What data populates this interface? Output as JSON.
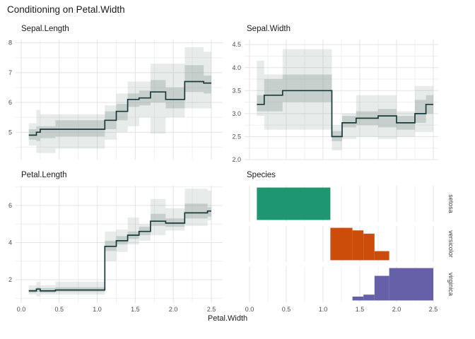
{
  "figure_title": "Conditioning on Petal.Width",
  "theme": {
    "background": "#ffffff",
    "grid_major": "#e3e3e3",
    "grid_minor": "#efefef",
    "line_color": "#18393a",
    "ribbon_color": "#93a39e",
    "ribbon_outer_opacity": 0.22,
    "ribbon_inner_opacity": 0.38,
    "tick_text_color": "#4d4d4d",
    "strip_text_color": "#404040"
  },
  "chart_data": [
    {
      "id": "sepal-length",
      "type": "area",
      "title": "Sepal.Length",
      "xlabel": "Petal.Width",
      "xlim": [
        -0.074,
        2.649
      ],
      "ylim": [
        4.08,
        8.11
      ],
      "xticks": {
        "values": [
          0,
          0.5,
          1,
          1.5,
          2,
          2.5
        ],
        "labels": [
          "0.0",
          "0.5",
          "1.0",
          "1.5",
          "2.0",
          "2.5"
        ]
      },
      "yticks": {
        "values": [
          5,
          6,
          7,
          8
        ],
        "labels": [
          "5",
          "6",
          "7",
          "8"
        ]
      },
      "show_x_labels": false,
      "grid": {
        "x_major": [
          0,
          0.5,
          1,
          1.5,
          2,
          2.5
        ],
        "x_minor": [
          0.25,
          0.75,
          1.25,
          1.75,
          2.25
        ],
        "y_major": [
          5,
          6,
          7,
          8
        ],
        "y_minor": [
          4.5,
          5.5,
          6.5,
          7.5
        ]
      },
      "steps": [
        {
          "x": 0.1,
          "y": 4.9,
          "inner": [
            4.75,
            5.1
          ],
          "outer": [
            4.55,
            5.3
          ]
        },
        {
          "x": 0.2,
          "y": 5.0,
          "inner": [
            4.7,
            5.2
          ],
          "outer": [
            4.3,
            5.75
          ]
        },
        {
          "x": 0.25,
          "y": 5.1,
          "inner": [
            4.8,
            5.2
          ],
          "outer": [
            4.3,
            5.6
          ]
        },
        {
          "x": 0.45,
          "y": 5.1,
          "inner": [
            4.85,
            5.4
          ],
          "outer": [
            4.45,
            5.6
          ]
        },
        {
          "x": 1.1,
          "y": 5.4,
          "inner": [
            5.1,
            5.7
          ],
          "outer": [
            4.75,
            5.9
          ]
        },
        {
          "x": 1.25,
          "y": 5.7,
          "inner": [
            5.4,
            5.95
          ],
          "outer": [
            5.0,
            6.3
          ]
        },
        {
          "x": 1.4,
          "y": 6.1,
          "inner": [
            5.85,
            6.3
          ],
          "outer": [
            5.2,
            6.7
          ]
        },
        {
          "x": 1.55,
          "y": 6.15,
          "inner": [
            5.9,
            6.4
          ],
          "outer": [
            5.5,
            6.7
          ]
        },
        {
          "x": 1.7,
          "y": 6.35,
          "inner": [
            6.0,
            6.75
          ],
          "outer": [
            4.95,
            7.3
          ]
        },
        {
          "x": 1.9,
          "y": 6.1,
          "inner": [
            5.8,
            6.5
          ],
          "outer": [
            5.5,
            7.3
          ]
        },
        {
          "x": 2.15,
          "y": 6.7,
          "inner": [
            6.35,
            7.25
          ],
          "outer": [
            5.8,
            7.85
          ]
        },
        {
          "x": 2.4,
          "y": 6.65,
          "inner": [
            6.3,
            6.9
          ],
          "outer": [
            5.8,
            7.7
          ]
        },
        {
          "x": 2.5
        }
      ]
    },
    {
      "id": "sepal-width",
      "type": "area",
      "title": "Sepal.Width",
      "xlabel": "Petal.Width",
      "xlim": [
        -0.067,
        2.567
      ],
      "ylim": [
        2.0,
        4.61
      ],
      "xticks": {
        "values": [
          0,
          0.5,
          1,
          1.5,
          2,
          2.5
        ],
        "labels": [
          "0.0",
          "0.5",
          "1.0",
          "1.5",
          "2.0",
          "2.5"
        ]
      },
      "yticks": {
        "values": [
          2.0,
          2.5,
          3.0,
          3.5,
          4.0,
          4.5
        ],
        "labels": [
          "2.0",
          "2.5",
          "3.0",
          "3.5",
          "4.0",
          "4.5"
        ]
      },
      "show_x_labels": false,
      "grid": {
        "x_major": [
          0,
          0.5,
          1,
          1.5,
          2,
          2.5
        ],
        "x_minor": [
          0.25,
          0.75,
          1.25,
          1.75,
          2.25
        ],
        "y_major": [
          2.0,
          2.5,
          3.0,
          3.5,
          4.0,
          4.5
        ],
        "y_minor": [
          2.25,
          2.75,
          3.25,
          3.75,
          4.25
        ]
      },
      "steps": [
        {
          "x": 0.1,
          "y": 3.2,
          "inner": [
            3.05,
            3.4
          ],
          "outer": [
            2.95,
            4.15
          ]
        },
        {
          "x": 0.2,
          "y": 3.4,
          "inner": [
            3.05,
            3.75
          ],
          "outer": [
            2.65,
            3.85
          ]
        },
        {
          "x": 0.45,
          "y": 3.5,
          "inner": [
            3.25,
            3.85
          ],
          "outer": [
            2.65,
            4.4
          ]
        },
        {
          "x": 1.12,
          "y": 2.5,
          "inner": [
            2.4,
            2.62
          ],
          "outer": [
            2.2,
            2.75
          ]
        },
        {
          "x": 1.26,
          "y": 2.8,
          "inner": [
            2.7,
            2.95
          ],
          "outer": [
            2.45,
            3.0
          ]
        },
        {
          "x": 1.45,
          "y": 2.9,
          "inner": [
            2.75,
            3.05
          ],
          "outer": [
            2.5,
            3.4
          ]
        },
        {
          "x": 1.75,
          "y": 2.95,
          "inner": [
            2.7,
            3.1
          ],
          "outer": [
            2.45,
            3.4
          ]
        },
        {
          "x": 2.0,
          "y": 2.8,
          "inner": [
            2.65,
            2.95
          ],
          "outer": [
            2.5,
            3.05
          ]
        },
        {
          "x": 2.25,
          "y": 3.0,
          "inner": [
            2.8,
            3.3
          ],
          "outer": [
            2.6,
            3.6
          ]
        },
        {
          "x": 2.4,
          "y": 3.2,
          "inner": [
            3.0,
            3.4
          ],
          "outer": [
            2.6,
            3.6
          ]
        },
        {
          "x": 2.5
        }
      ]
    },
    {
      "id": "petal-length",
      "type": "area",
      "title": "Petal.Length",
      "xlabel": "Petal.Width",
      "xlim": [
        -0.074,
        2.649
      ],
      "ylim": [
        0.75,
        7.06
      ],
      "xticks": {
        "values": [
          0,
          0.5,
          1,
          1.5,
          2,
          2.5
        ],
        "labels": [
          "0.0",
          "0.5",
          "1.0",
          "1.5",
          "2.0",
          "2.5"
        ]
      },
      "yticks": {
        "values": [
          2,
          4,
          6
        ],
        "labels": [
          "2",
          "4",
          "6"
        ]
      },
      "show_x_labels": true,
      "grid": {
        "x_major": [
          0,
          0.5,
          1,
          1.5,
          2,
          2.5
        ],
        "x_minor": [
          0.25,
          0.75,
          1.25,
          1.75,
          2.25
        ],
        "y_major": [
          2,
          4,
          6
        ],
        "y_minor": [
          1,
          3,
          5,
          7
        ]
      },
      "steps": [
        {
          "x": 0.1,
          "y": 1.4,
          "inner": [
            1.3,
            1.5
          ],
          "outer": [
            1.2,
            1.7
          ]
        },
        {
          "x": 0.2,
          "y": 1.5,
          "inner": [
            1.35,
            1.6
          ],
          "outer": [
            1.1,
            1.9
          ]
        },
        {
          "x": 0.25,
          "y": 1.4,
          "inner": [
            1.3,
            1.55
          ],
          "outer": [
            1.2,
            1.7
          ]
        },
        {
          "x": 0.45,
          "y": 1.45,
          "inner": [
            1.35,
            1.6
          ],
          "outer": [
            1.2,
            1.9
          ]
        },
        {
          "x": 1.1,
          "y": 3.8,
          "inner": [
            3.55,
            4.1
          ],
          "outer": [
            3.0,
            4.6
          ]
        },
        {
          "x": 1.25,
          "y": 4.1,
          "inner": [
            3.9,
            4.35
          ],
          "outer": [
            3.5,
            4.7
          ]
        },
        {
          "x": 1.4,
          "y": 4.4,
          "inner": [
            4.2,
            4.6
          ],
          "outer": [
            3.9,
            5.35
          ]
        },
        {
          "x": 1.55,
          "y": 4.6,
          "inner": [
            4.4,
            4.85
          ],
          "outer": [
            4.1,
            5.0
          ]
        },
        {
          "x": 1.7,
          "y": 5.15,
          "inner": [
            4.9,
            5.55
          ],
          "outer": [
            4.4,
            6.35
          ]
        },
        {
          "x": 1.9,
          "y": 5.05,
          "inner": [
            4.85,
            5.3
          ],
          "outer": [
            4.65,
            5.85
          ]
        },
        {
          "x": 2.15,
          "y": 5.6,
          "inner": [
            5.3,
            6.1
          ],
          "outer": [
            4.9,
            6.9
          ]
        },
        {
          "x": 2.45,
          "y": 5.7,
          "inner": [
            5.4,
            5.9
          ],
          "outer": [
            5.2,
            6.8
          ]
        },
        {
          "x": 2.5
        }
      ]
    },
    {
      "id": "species",
      "type": "bar",
      "title": "Species",
      "xlabel": "Petal.Width",
      "xlim": [
        -0.067,
        2.567
      ],
      "xticks": {
        "values": [
          0,
          0.5,
          1,
          1.5,
          2,
          2.5
        ],
        "labels": [
          "0.0",
          "0.5",
          "1.0",
          "1.5",
          "2.0",
          "2.5"
        ]
      },
      "show_x_labels": true,
      "grid": {
        "x_major": [
          0,
          0.5,
          1,
          1.5,
          2,
          2.5
        ],
        "x_minor": [
          0.25,
          0.75,
          1.25,
          1.75,
          2.25
        ]
      },
      "facets": [
        {
          "label": "setosa",
          "color": "#1e9671",
          "bars": [
            {
              "x0": 0.1,
              "x1": 1.1,
              "h": 1.0
            }
          ]
        },
        {
          "label": "versicolor",
          "color": "#cc4c09",
          "bars": [
            {
              "x0": 1.1,
              "x1": 1.4,
              "h": 1.0
            },
            {
              "x0": 1.4,
              "x1": 1.55,
              "h": 0.92
            },
            {
              "x0": 1.55,
              "x1": 1.7,
              "h": 0.82
            },
            {
              "x0": 1.7,
              "x1": 1.9,
              "h": 0.28
            }
          ]
        },
        {
          "label": "virginica",
          "color": "#6660a8",
          "bars": [
            {
              "x0": 1.4,
              "x1": 1.55,
              "h": 0.12
            },
            {
              "x0": 1.55,
              "x1": 1.7,
              "h": 0.18
            },
            {
              "x0": 1.7,
              "x1": 1.9,
              "h": 0.76
            },
            {
              "x0": 1.9,
              "x1": 2.5,
              "h": 1.0
            }
          ]
        }
      ]
    }
  ]
}
